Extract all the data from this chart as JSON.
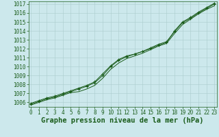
{
  "title": "Graphe pression niveau de la mer (hPa)",
  "background_color": "#cce8ec",
  "plot_bg_color": "#cce8ec",
  "grid_color": "#aacccc",
  "line_color": "#1a5c1a",
  "marker_color": "#1a5c1a",
  "x_values": [
    0,
    1,
    2,
    3,
    4,
    5,
    6,
    7,
    8,
    9,
    10,
    11,
    12,
    13,
    14,
    15,
    16,
    17,
    18,
    19,
    20,
    21,
    22,
    23
  ],
  "line1": [
    1005.9,
    1006.2,
    1006.5,
    1006.7,
    1007.0,
    1007.3,
    1007.6,
    1007.9,
    1008.3,
    1009.2,
    1010.1,
    1010.8,
    1011.2,
    1011.4,
    1011.7,
    1012.0,
    1012.4,
    1012.7,
    1014.0,
    1015.0,
    1015.5,
    1016.1,
    1016.6,
    1017.1
  ],
  "line2": [
    1005.8,
    1006.1,
    1006.4,
    1006.6,
    1006.9,
    1007.2,
    1007.5,
    1007.8,
    1008.2,
    1009.0,
    1010.0,
    1010.7,
    1011.1,
    1011.4,
    1011.7,
    1012.1,
    1012.5,
    1012.8,
    1013.9,
    1014.9,
    1015.4,
    1016.0,
    1016.5,
    1017.0
  ],
  "line3": [
    1005.7,
    1006.0,
    1006.3,
    1006.5,
    1006.8,
    1007.1,
    1007.2,
    1007.5,
    1007.9,
    1008.7,
    1009.7,
    1010.4,
    1010.9,
    1011.2,
    1011.5,
    1011.9,
    1012.3,
    1012.6,
    1013.7,
    1014.7,
    1015.3,
    1015.9,
    1016.4,
    1016.8
  ],
  "ylim_min": 1005.5,
  "ylim_max": 1017.3,
  "yticks": [
    1006,
    1007,
    1008,
    1009,
    1010,
    1011,
    1012,
    1013,
    1014,
    1015,
    1016,
    1017
  ],
  "xticks": [
    0,
    1,
    2,
    3,
    4,
    5,
    6,
    7,
    8,
    9,
    10,
    11,
    12,
    13,
    14,
    15,
    16,
    17,
    18,
    19,
    20,
    21,
    22,
    23
  ],
  "title_fontsize": 7.5,
  "tick_fontsize": 5.5,
  "title_color": "#1a5c1a",
  "tick_color": "#1a5c1a",
  "spine_color": "#1a5c1a"
}
